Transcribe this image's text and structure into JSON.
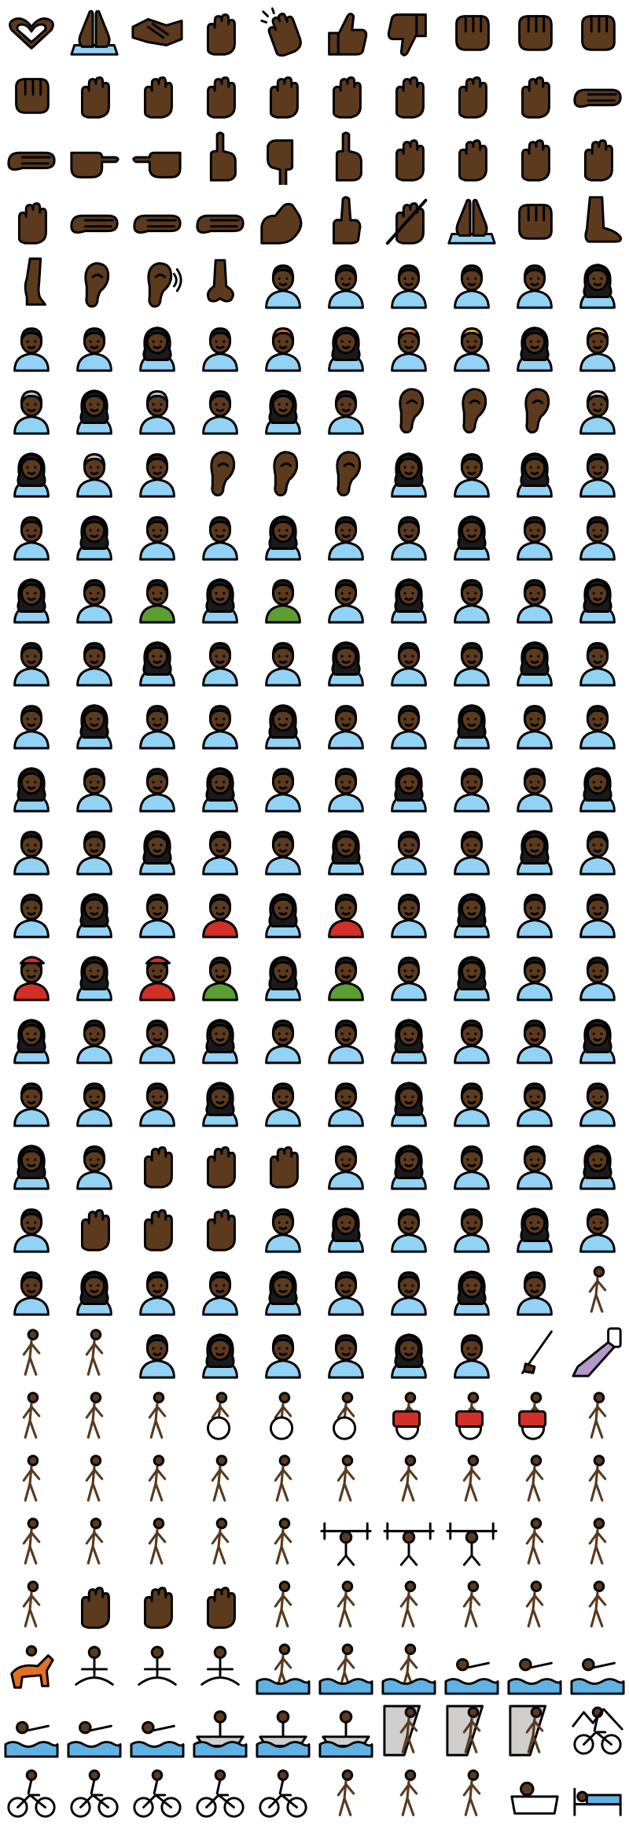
{
  "palette": {
    "skin": "#5b3a1e",
    "shirt": "#92d3f5",
    "hair": "#1a1a1a",
    "green": "#5c9e31",
    "red": "#d22f27",
    "blue": "#61b2e4",
    "gray": "#d0cfce",
    "yellow": "#f1b31c",
    "purple": "#b399c8",
    "white": "#ffffff",
    "orange": "#e27022"
  },
  "grid": {
    "columns": 10,
    "rows": 29
  },
  "icons": [
    "heart-hands",
    "palms-up-together",
    "handshake",
    "raised-back-of-hand",
    "clapping-hands",
    "thumbs-up",
    "thumbs-down",
    "oncoming-fist",
    "raised-fist",
    "right-facing-fist",
    "left-facing-fist",
    "crossed-fingers",
    "victory-hand",
    "hand-with-index-finger-and-thumb-crossed",
    "sign-of-the-horns",
    "love-you-gesture",
    "ok-hand",
    "pinched-fingers",
    "pinching-hand",
    "leftwards-hand",
    "palm-down-hand",
    "backhand-index-pointing-right",
    "backhand-index-pointing-left",
    "backhand-index-pointing-up",
    "backhand-index-pointing-down",
    "index-pointing-up",
    "raised-hand",
    "raised-hand-with-fingers-splayed",
    "vulcan-salute",
    "vulcan-salute-alt",
    "waving-hand",
    "call-me-hand",
    "rightwards-hand",
    "leftwards-hand-alt",
    "flexed-biceps",
    "middle-finger",
    "writing-hand",
    "folded-hands",
    "raised-fist-alt",
    "foot",
    "leg",
    "ear",
    "ear-with-hearing-aid",
    "nose",
    "baby",
    "child",
    "girl",
    "boy",
    "person",
    "woman",
    "man-curly-hair",
    "person-curly-hair",
    "woman-curly-hair",
    "man-curly-hair-alt",
    "person-red-hair",
    "woman-red-hair",
    "man-red-hair",
    "person-blond-hair",
    "woman-blond-hair",
    "man-blond-hair",
    "person-white-hair",
    "woman-white-hair",
    "man-white-hair",
    "person-bald",
    "woman-bald",
    "man-bald",
    "person-beard",
    "woman-beard",
    "man-beard",
    "older-person",
    "old-woman",
    "old-man",
    "person-with-skullcap",
    "person-wearing-turban",
    "woman-wearing-turban",
    "man-wearing-turban",
    "woman-with-headscarf",
    "police-officer",
    "woman-police-officer",
    "man-police-officer",
    "construction-worker",
    "woman-construction-worker",
    "man-construction-worker",
    "guard",
    "woman-guard",
    "man-guard",
    "detective",
    "woman-detective",
    "man-detective",
    "health-worker",
    "woman-health-worker",
    "man-health-worker",
    "farmer",
    "woman-farmer",
    "man-farmer",
    "cook",
    "woman-cook",
    "man-cook",
    "student",
    "woman-student",
    "man-student",
    "teacher",
    "woman-teacher",
    "man-teacher",
    "judge",
    "woman-judge",
    "man-judge",
    "factory-worker",
    "woman-factory-worker",
    "man-factory-worker",
    "office-worker",
    "woman-office-worker",
    "man-office-worker",
    "mechanic",
    "woman-mechanic",
    "man-mechanic",
    "scientist",
    "woman-scientist",
    "man-scientist",
    "technologist",
    "woman-technologist",
    "man-technologist",
    "artist",
    "woman-artist",
    "man-artist",
    "firefighter",
    "woman-firefighter",
    "man-firefighter",
    "pilot",
    "woman-pilot",
    "man-pilot",
    "astronaut",
    "woman-astronaut",
    "man-astronaut",
    "person-in-tuxedo",
    "woman-in-tuxedo",
    "man-in-tuxedo",
    "person-with-veil",
    "woman-with-veil",
    "man-with-veil",
    "prince",
    "princess",
    "person-with-crown",
    "superhero",
    "woman-superhero",
    "man-superhero",
    "supervillain",
    "woman-supervillain",
    "man-supervillain",
    "ninja",
    "mx-claus",
    "mrs-claus",
    "santa-claus",
    "mage",
    "woman-mage",
    "man-mage",
    "elf",
    "woman-elf",
    "man-elf",
    "vampire",
    "woman-vampire",
    "man-vampire",
    "vampire-alt",
    "woman-vampire-alt",
    "man-vampire-alt",
    "merperson",
    "mermaid",
    "merman",
    "fairy",
    "woman-fairy",
    "man-fairy",
    "baby-angel",
    "pregnant-person",
    "pregnant-woman",
    "pregnant-man",
    "breast-feeding",
    "woman-feeding-baby",
    "man-feeding-baby",
    "person-feeding-baby",
    "person-getting-massage",
    "woman-getting-massage",
    "man-getting-massage",
    "person-tipping-hand",
    "woman-tipping-hand",
    "man-tipping-hand",
    "person-gesturing-no",
    "woman-gesturing-no",
    "man-gesturing-no",
    "person-gesturing-ok",
    "woman-gesturing-ok",
    "man-gesturing-ok",
    "person-raising-hand",
    "woman-raising-hand",
    "man-raising-hand",
    "deaf-person",
    "deaf-woman",
    "deaf-man",
    "person-facepalming",
    "woman-facepalming",
    "man-facepalming",
    "person-shrugging",
    "woman-shrugging",
    "man-shrugging",
    "person-frowning",
    "woman-frowning",
    "man-frowning",
    "person-pouting",
    "woman-pouting",
    "man-pouting",
    "person-with-probing-cane",
    "woman-with-probing-cane",
    "man-with-probing-cane",
    "person-bowing",
    "woman-bowing",
    "man-bowing",
    "person-surfing-face",
    "woman-surfing-face",
    "man-surfing-face",
    "selfie-pen",
    "selfie",
    "person-dancing",
    "man-dancing",
    "person-in-suit-levitating",
    "person-in-manual-wheelchair",
    "woman-in-manual-wheelchair",
    "man-in-manual-wheelchair",
    "person-in-motorized-wheelchair",
    "woman-in-motorized-wheelchair",
    "man-in-motorized-wheelchair",
    "person-walking",
    "woman-walking",
    "man-walking",
    "person-with-white-cane",
    "woman-with-white-cane",
    "man-with-white-cane",
    "person-kneeling",
    "woman-kneeling",
    "man-kneeling",
    "person-running",
    "woman-running",
    "man-running",
    "person-standing",
    "woman-standing",
    "man-standing",
    "snowboarder",
    "person-lifting-weights",
    "woman-lifting-weights",
    "man-lifting-weights",
    "person-cartwheeling",
    "woman-cartwheeling",
    "man-cartwheeling",
    "person-playing-handball",
    "woman-playing-handball",
    "man-playing-handball",
    "person-juggling",
    "woman-juggling",
    "man-juggling",
    "person-golfing",
    "woman-golfing",
    "man-golfing",
    "horse-racing",
    "person-in-lotus-position",
    "woman-in-lotus-position",
    "man-in-lotus-position",
    "person-surfing",
    "woman-surfing",
    "man-surfing",
    "person-swimming",
    "woman-swimming",
    "man-swimming",
    "person-playing-water-polo",
    "woman-playing-water-polo",
    "man-playing-water-polo",
    "person-rowing-boat",
    "woman-rowing-boat",
    "man-rowing-boat",
    "person-climbing",
    "woman-climbing",
    "man-climbing",
    "person-mountain-biking",
    "person-biking",
    "woman-biking",
    "man-biking",
    "woman-biking-alt",
    "man-biking-alt",
    "person-juggling-alt",
    "woman-juggling-alt",
    "man-juggling-alt",
    "person-taking-bath",
    "person-in-bed"
  ]
}
